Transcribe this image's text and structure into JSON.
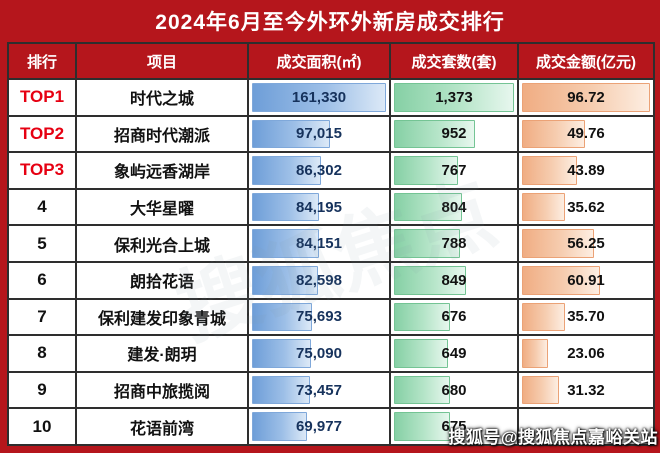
{
  "title": "2024年6月至今外环外新房成交排行",
  "watermark": "搜狐号@搜狐焦点嘉峪关站",
  "ghost_watermark": "搜狐焦点",
  "colors": {
    "frame_red": "#b5161c",
    "top_rank_red": "#e60012",
    "area_bar_blue": "#6e9ed8",
    "units_bar_green": "#86d0a5",
    "amount_bar_orange": "#f0ad83"
  },
  "table": {
    "headers": [
      "排行",
      "项目",
      "成交面积(㎡)",
      "成交套数(套)",
      "成交金额(亿元)"
    ],
    "rows": [
      {
        "rank": "TOP1",
        "is_top": true,
        "project": "时代之城",
        "area": "161,330",
        "area_value": 161330,
        "units": "1,373",
        "units_value": 1373,
        "amount": "96.72",
        "amount_value": 96.72
      },
      {
        "rank": "TOP2",
        "is_top": true,
        "project": "招商时代潮派",
        "area": "97,015",
        "area_value": 97015,
        "units": "952",
        "units_value": 952,
        "amount": "49.76",
        "amount_value": 49.76
      },
      {
        "rank": "TOP3",
        "is_top": true,
        "project": "象屿远香湖岸",
        "area": "86,302",
        "area_value": 86302,
        "units": "767",
        "units_value": 767,
        "amount": "43.89",
        "amount_value": 43.89
      },
      {
        "rank": "4",
        "is_top": false,
        "project": "大华星曜",
        "area": "84,195",
        "area_value": 84195,
        "units": "804",
        "units_value": 804,
        "amount": "35.62",
        "amount_value": 35.62
      },
      {
        "rank": "5",
        "is_top": false,
        "project": "保利光合上城",
        "area": "84,151",
        "area_value": 84151,
        "units": "788",
        "units_value": 788,
        "amount": "56.25",
        "amount_value": 56.25
      },
      {
        "rank": "6",
        "is_top": false,
        "project": "朗拾花语",
        "area": "82,598",
        "area_value": 82598,
        "units": "849",
        "units_value": 849,
        "amount": "60.91",
        "amount_value": 60.91
      },
      {
        "rank": "7",
        "is_top": false,
        "project": "保利建发印象青城",
        "area": "75,693",
        "area_value": 75693,
        "units": "676",
        "units_value": 676,
        "amount": "35.70",
        "amount_value": 35.7
      },
      {
        "rank": "8",
        "is_top": false,
        "project": "建发·朗玥",
        "area": "75,090",
        "area_value": 75090,
        "units": "649",
        "units_value": 649,
        "amount": "23.06",
        "amount_value": 23.06
      },
      {
        "rank": "9",
        "is_top": false,
        "project": "招商中旅揽阅",
        "area": "73,457",
        "area_value": 73457,
        "units": "680",
        "units_value": 680,
        "amount": "31.32",
        "amount_value": 31.32
      },
      {
        "rank": "10",
        "is_top": false,
        "project": "花语前湾",
        "area": "69,977",
        "area_value": 69977,
        "units": "675",
        "units_value": 675,
        "amount": "",
        "amount_value": 0
      }
    ]
  },
  "chart_data": {
    "type": "table",
    "title": "2024年6月至今外环外新房成交排行",
    "columns": [
      "排行",
      "项目",
      "成交面积(㎡)",
      "成交套数(套)",
      "成交金额(亿元)"
    ],
    "rows": [
      [
        "TOP1",
        "时代之城",
        161330,
        1373,
        96.72
      ],
      [
        "TOP2",
        "招商时代潮派",
        97015,
        952,
        49.76
      ],
      [
        "TOP3",
        "象屿远香湖岸",
        86302,
        767,
        43.89
      ],
      [
        "4",
        "大华星曜",
        84195,
        804,
        35.62
      ],
      [
        "5",
        "保利光合上城",
        84151,
        788,
        56.25
      ],
      [
        "6",
        "朗拾花语",
        82598,
        849,
        60.91
      ],
      [
        "7",
        "保利建发印象青城",
        75693,
        676,
        35.7
      ],
      [
        "8",
        "建发·朗玥",
        75090,
        649,
        23.06
      ],
      [
        "9",
        "招商中旅揽阅",
        73457,
        680,
        31.32
      ],
      [
        "10",
        "花语前湾",
        69977,
        675,
        null
      ]
    ],
    "databar_columns": {
      "成交面积(㎡)": "blue",
      "成交套数(套)": "green",
      "成交金额(亿元)": "orange"
    }
  }
}
